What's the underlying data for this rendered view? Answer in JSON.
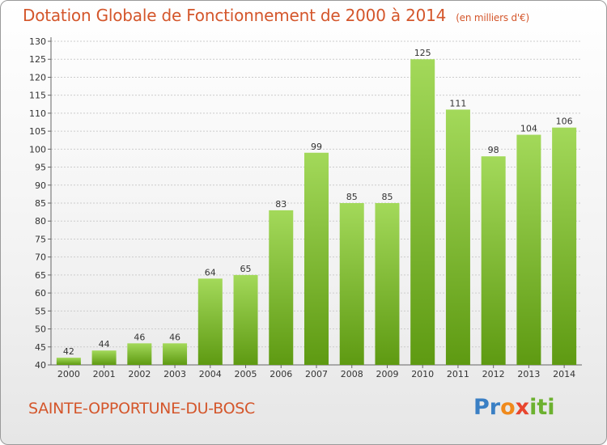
{
  "title": "Dotation Globale de Fonctionnement de 2000 à 2014",
  "unit_label": "(en milliers d'€)",
  "commune": "SAINTE-OPPORTUNE-DU-BOSC",
  "logo": {
    "p1": "Pr",
    "p2": "o",
    "p3": "x",
    "p4": "iti"
  },
  "colors": {
    "title": "#d4562b",
    "bar_top": "#a3d95a",
    "bar_bottom": "#5e9a12",
    "grid": "#cccccc"
  },
  "chart_data": {
    "type": "bar",
    "title": "Dotation Globale de Fonctionnement de 2000 à 2014 (en milliers d'€)",
    "xlabel": "",
    "ylabel": "",
    "categories": [
      "2000",
      "2001",
      "2002",
      "2003",
      "2004",
      "2005",
      "2006",
      "2007",
      "2008",
      "2009",
      "2010",
      "2011",
      "2012",
      "2013",
      "2014"
    ],
    "values": [
      42,
      44,
      46,
      46,
      64,
      65,
      83,
      99,
      85,
      85,
      125,
      111,
      98,
      104,
      106
    ],
    "ylim": [
      40,
      130
    ],
    "yticks": [
      40,
      45,
      50,
      55,
      60,
      65,
      70,
      75,
      80,
      85,
      90,
      95,
      100,
      105,
      110,
      115,
      120,
      125,
      130
    ],
    "grid": true
  }
}
